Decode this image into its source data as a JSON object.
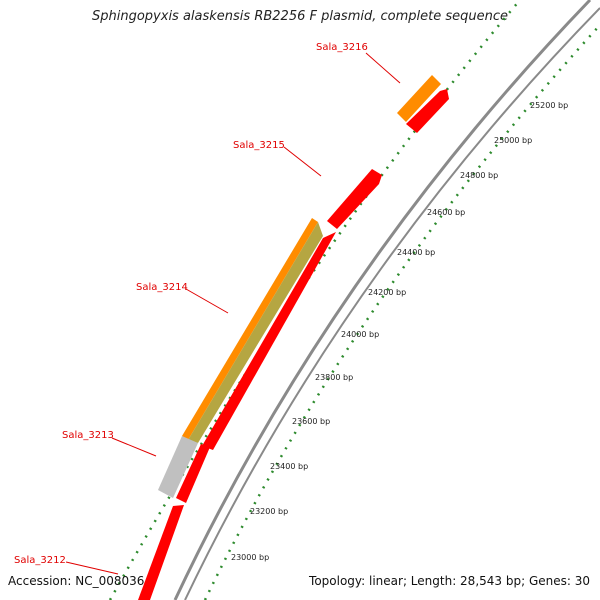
{
  "title": "Sphingopyxis alaskensis RB2256 F plasmid, complete sequence",
  "accession": "Accession: NC_008036",
  "summary": "Topology: linear; Length: 28,543 bp; Genes: 30",
  "colors": {
    "backbone": "#8a8a8a",
    "cds": "#ff0000",
    "gene": "#ff8c00",
    "gene_overlap": "#b5a642",
    "pseudo": "#c0c0c0",
    "tick": "#2e8b2e",
    "label": "#e00000"
  },
  "scale": {
    "ticks": [
      "23000 bp",
      "23200 bp",
      "23400 bp",
      "23600 bp",
      "23800 bp",
      "24000 bp",
      "24200 bp",
      "24400 bp",
      "24600 bp",
      "24800 bp",
      "25000 bp",
      "25200 bp"
    ]
  },
  "genes": [
    {
      "label": "Sala_3212"
    },
    {
      "label": "Sala_3213"
    },
    {
      "label": "Sala_3214"
    },
    {
      "label": "Sala_3215"
    },
    {
      "label": "Sala_3216"
    }
  ]
}
